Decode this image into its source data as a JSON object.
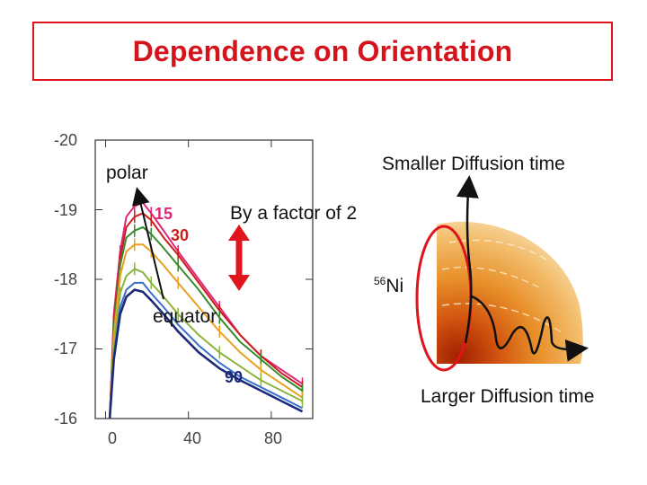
{
  "title": "Dependence on Orientation",
  "annotations": {
    "polar": "polar",
    "equator": "equator",
    "factor": "By a factor of 2",
    "smaller": "Smaller Diffusion time",
    "larger": "Larger Diffusion time",
    "ni_sup": "56",
    "ni": "Ni"
  },
  "colors": {
    "title": "#d4141c",
    "frame": "#e0141c",
    "arrow_red": "#e0141c"
  },
  "chart_data": {
    "type": "line",
    "xlabel": "",
    "ylabel": "",
    "xlim": [
      -5,
      100
    ],
    "ylim": [
      -20,
      -16
    ],
    "x_ticks": [
      "0",
      "40",
      "80"
    ],
    "y_ticks": [
      "-20",
      "-19",
      "-18",
      "-17",
      "-16"
    ],
    "x_tick_values": [
      0,
      40,
      80
    ],
    "y_tick_values": [
      -20,
      -19,
      -18,
      -17,
      -16
    ],
    "series": [
      {
        "name": "15",
        "color": "#e0287a",
        "values": [
          [
            2,
            -16
          ],
          [
            4,
            -17.5
          ],
          [
            7,
            -18.4
          ],
          [
            10,
            -18.9
          ],
          [
            14,
            -19.05
          ],
          [
            18,
            -19.1
          ],
          [
            22,
            -18.95
          ],
          [
            28,
            -18.7
          ],
          [
            35,
            -18.4
          ],
          [
            45,
            -18.0
          ],
          [
            55,
            -17.6
          ],
          [
            65,
            -17.2
          ],
          [
            75,
            -16.9
          ],
          [
            85,
            -16.7
          ],
          [
            95,
            -16.5
          ]
        ]
      },
      {
        "name": "30",
        "color": "#c81e1e",
        "values": [
          [
            2,
            -16
          ],
          [
            4,
            -17.4
          ],
          [
            7,
            -18.3
          ],
          [
            10,
            -18.75
          ],
          [
            14,
            -18.9
          ],
          [
            18,
            -18.95
          ],
          [
            22,
            -18.85
          ],
          [
            28,
            -18.6
          ],
          [
            35,
            -18.35
          ],
          [
            45,
            -17.95
          ],
          [
            55,
            -17.55
          ],
          [
            65,
            -17.2
          ],
          [
            75,
            -16.9
          ],
          [
            85,
            -16.65
          ],
          [
            95,
            -16.45
          ]
        ]
      },
      {
        "name": "",
        "color": "#3a8a2e",
        "values": [
          [
            2,
            -16
          ],
          [
            4,
            -17.3
          ],
          [
            7,
            -18.2
          ],
          [
            10,
            -18.6
          ],
          [
            14,
            -18.7
          ],
          [
            18,
            -18.75
          ],
          [
            22,
            -18.65
          ],
          [
            28,
            -18.45
          ],
          [
            35,
            -18.2
          ],
          [
            45,
            -17.85
          ],
          [
            55,
            -17.45
          ],
          [
            65,
            -17.1
          ],
          [
            75,
            -16.85
          ],
          [
            85,
            -16.6
          ],
          [
            95,
            -16.4
          ]
        ]
      },
      {
        "name": "",
        "color": "#e8a020",
        "values": [
          [
            2,
            -16
          ],
          [
            4,
            -17.2
          ],
          [
            7,
            -18.05
          ],
          [
            10,
            -18.4
          ],
          [
            14,
            -18.5
          ],
          [
            18,
            -18.5
          ],
          [
            22,
            -18.4
          ],
          [
            28,
            -18.2
          ],
          [
            35,
            -17.95
          ],
          [
            45,
            -17.6
          ],
          [
            55,
            -17.25
          ],
          [
            65,
            -16.95
          ],
          [
            75,
            -16.7
          ],
          [
            85,
            -16.5
          ],
          [
            95,
            -16.3
          ]
        ]
      },
      {
        "name": "",
        "color": "#8cb43c",
        "values": [
          [
            2,
            -16
          ],
          [
            4,
            -17.0
          ],
          [
            7,
            -17.8
          ],
          [
            10,
            -18.05
          ],
          [
            14,
            -18.15
          ],
          [
            18,
            -18.1
          ],
          [
            22,
            -17.95
          ],
          [
            28,
            -17.75
          ],
          [
            35,
            -17.5
          ],
          [
            45,
            -17.2
          ],
          [
            55,
            -16.95
          ],
          [
            65,
            -16.75
          ],
          [
            75,
            -16.55
          ],
          [
            85,
            -16.4
          ],
          [
            95,
            -16.25
          ]
        ]
      },
      {
        "name": "",
        "color": "#3a6fc8",
        "values": [
          [
            2,
            -16
          ],
          [
            4,
            -16.9
          ],
          [
            7,
            -17.6
          ],
          [
            10,
            -17.85
          ],
          [
            14,
            -17.95
          ],
          [
            18,
            -17.95
          ],
          [
            22,
            -17.8
          ],
          [
            28,
            -17.6
          ],
          [
            35,
            -17.35
          ],
          [
            45,
            -17.05
          ],
          [
            55,
            -16.8
          ],
          [
            65,
            -16.6
          ],
          [
            75,
            -16.45
          ],
          [
            85,
            -16.3
          ],
          [
            95,
            -16.15
          ]
        ]
      },
      {
        "name": "90",
        "color": "#1c2a78",
        "values": [
          [
            2,
            -16
          ],
          [
            4,
            -16.85
          ],
          [
            7,
            -17.5
          ],
          [
            10,
            -17.75
          ],
          [
            14,
            -17.85
          ],
          [
            18,
            -17.82
          ],
          [
            22,
            -17.7
          ],
          [
            28,
            -17.5
          ],
          [
            35,
            -17.25
          ],
          [
            45,
            -16.95
          ],
          [
            55,
            -16.72
          ],
          [
            65,
            -16.55
          ],
          [
            75,
            -16.4
          ],
          [
            85,
            -16.25
          ],
          [
            95,
            -16.1
          ]
        ]
      }
    ]
  }
}
